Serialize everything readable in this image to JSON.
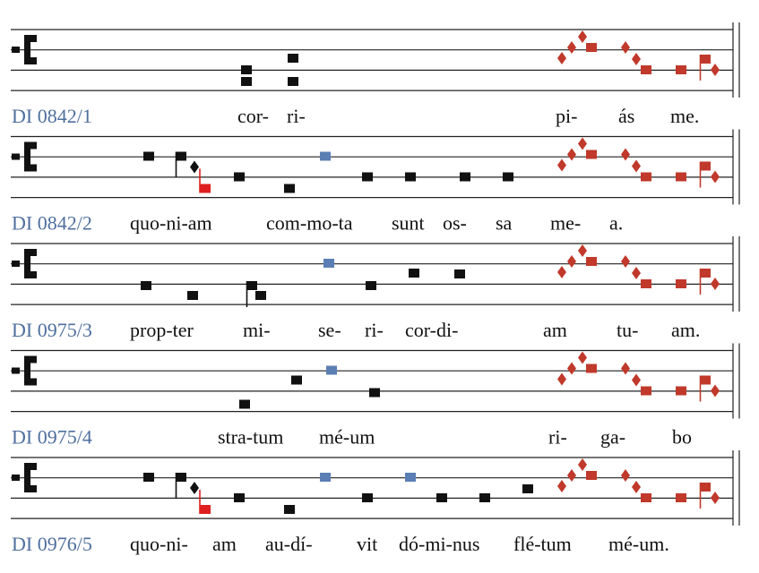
{
  "systems": [
    {
      "label": "DI 0842/1",
      "syllables": [
        "cor-",
        "ri-",
        "pi-",
        "ás",
        "me."
      ]
    },
    {
      "label": "DI 0842/2",
      "syllables": [
        "quo-ni-am",
        "com-mo-ta",
        "sunt",
        "os-",
        "sa",
        "me-",
        "a."
      ]
    },
    {
      "label": "DI 0975/3",
      "syllables": [
        "prop-ter",
        "mi-",
        "se-",
        "ri-",
        "cor-di-",
        "am",
        "tu-",
        "am."
      ]
    },
    {
      "label": "DI 0975/4",
      "syllables": [
        "stra-tum",
        "mé-um",
        "ri-",
        "ga-",
        "bo"
      ]
    },
    {
      "label": "DI 0976/5",
      "syllables": [
        "quo-ni-",
        "am",
        "au-dí-",
        "vit",
        "dó-mi-nus",
        "flé-tum",
        "mé-um."
      ]
    }
  ]
}
